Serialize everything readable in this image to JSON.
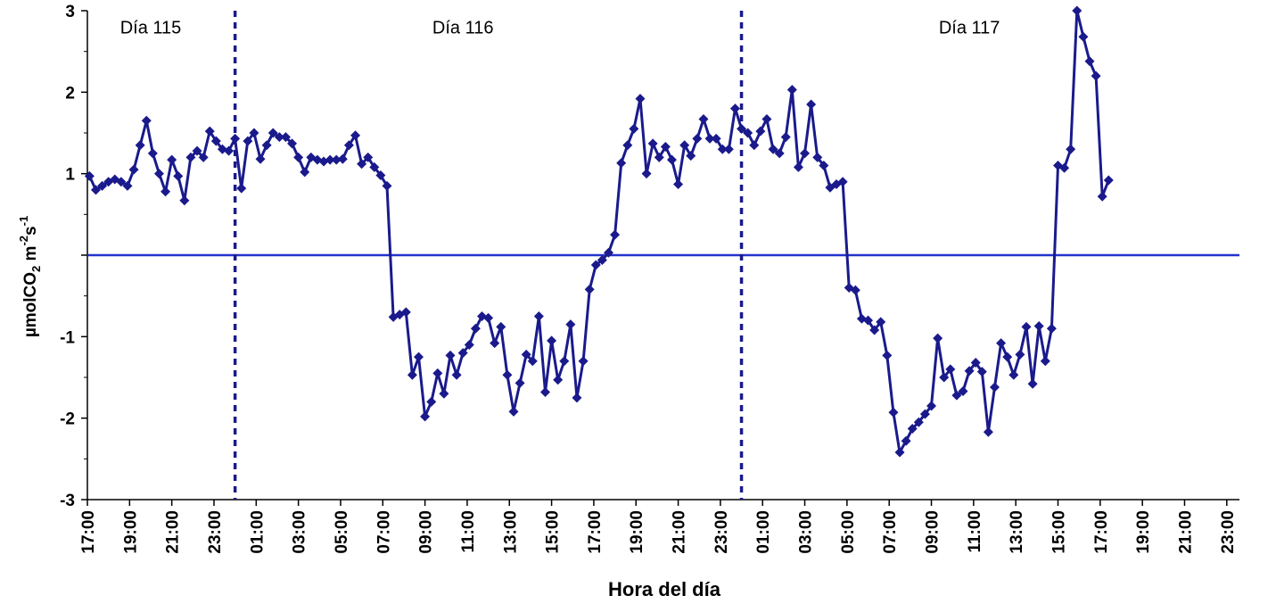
{
  "chart_data": {
    "type": "line",
    "title": "",
    "xlabel": "Hora del día",
    "ylabel": {
      "main": "µmolCO",
      "sub": "2",
      "unit": " m",
      "sup1": "-2",
      "unit2": "s",
      "sup2": "-1"
    },
    "xlim": [
      17,
      71.6
    ],
    "ylim": [
      -3,
      3
    ],
    "x_tick_labels": [
      "17:00",
      "19:00",
      "21:00",
      "23:00",
      "01:00",
      "03:00",
      "05:00",
      "07:00",
      "09:00",
      "11:00",
      "13:00",
      "15:00",
      "17:00",
      "19:00",
      "21:00",
      "23:00",
      "01:00",
      "03:00",
      "05:00",
      "07:00",
      "09:00",
      "11:00",
      "13:00",
      "15:00",
      "17:00",
      "19:00",
      "21:00",
      "23:00"
    ],
    "y_tick_labels": [
      "3",
      "2",
      "1",
      "",
      "-1",
      "-2",
      "-3"
    ],
    "y_tick_values": [
      3,
      2,
      1,
      0,
      -1,
      -2,
      -3
    ],
    "grid": false,
    "legend": "none",
    "zero_line": 0,
    "day_boundaries": [
      24,
      48
    ],
    "annotations": [
      {
        "text": "Día 115",
        "x": 20.0,
        "y": 2.8
      },
      {
        "text": "Día 116",
        "x": 34.8,
        "y": 2.8
      },
      {
        "text": "Día 117",
        "x": 58.8,
        "y": 2.8
      }
    ],
    "series": [
      {
        "color": "#1a1a8c",
        "marker": "diamond",
        "points": [
          [
            17.1,
            0.97
          ],
          [
            17.4,
            0.8
          ],
          [
            17.7,
            0.85
          ],
          [
            18.0,
            0.9
          ],
          [
            18.3,
            0.93
          ],
          [
            18.6,
            0.9
          ],
          [
            18.9,
            0.85
          ],
          [
            19.2,
            1.05
          ],
          [
            19.5,
            1.35
          ],
          [
            19.8,
            1.65
          ],
          [
            20.1,
            1.25
          ],
          [
            20.4,
            1.0
          ],
          [
            20.7,
            0.78
          ],
          [
            21.0,
            1.17
          ],
          [
            21.3,
            0.97
          ],
          [
            21.6,
            0.67
          ],
          [
            21.9,
            1.2
          ],
          [
            22.2,
            1.28
          ],
          [
            22.5,
            1.2
          ],
          [
            22.8,
            1.52
          ],
          [
            23.1,
            1.4
          ],
          [
            23.4,
            1.3
          ],
          [
            23.7,
            1.28
          ],
          [
            24.0,
            1.43
          ],
          [
            24.3,
            0.82
          ],
          [
            24.6,
            1.4
          ],
          [
            24.9,
            1.5
          ],
          [
            25.2,
            1.18
          ],
          [
            25.5,
            1.35
          ],
          [
            25.8,
            1.5
          ],
          [
            26.1,
            1.45
          ],
          [
            26.4,
            1.45
          ],
          [
            26.7,
            1.37
          ],
          [
            27.0,
            1.2
          ],
          [
            27.3,
            1.02
          ],
          [
            27.6,
            1.2
          ],
          [
            27.9,
            1.17
          ],
          [
            28.2,
            1.15
          ],
          [
            28.5,
            1.17
          ],
          [
            28.8,
            1.17
          ],
          [
            29.1,
            1.18
          ],
          [
            29.4,
            1.35
          ],
          [
            29.7,
            1.47
          ],
          [
            30.0,
            1.12
          ],
          [
            30.3,
            1.2
          ],
          [
            30.6,
            1.08
          ],
          [
            30.9,
            0.98
          ],
          [
            31.2,
            0.85
          ],
          [
            31.5,
            -0.76
          ],
          [
            31.8,
            -0.73
          ],
          [
            32.1,
            -0.7
          ],
          [
            32.4,
            -1.47
          ],
          [
            32.7,
            -1.25
          ],
          [
            33.0,
            -1.98
          ],
          [
            33.3,
            -1.8
          ],
          [
            33.6,
            -1.45
          ],
          [
            33.9,
            -1.7
          ],
          [
            34.2,
            -1.23
          ],
          [
            34.5,
            -1.47
          ],
          [
            34.8,
            -1.2
          ],
          [
            35.1,
            -1.1
          ],
          [
            35.4,
            -0.9
          ],
          [
            35.7,
            -0.75
          ],
          [
            36.0,
            -0.77
          ],
          [
            36.3,
            -1.08
          ],
          [
            36.6,
            -0.88
          ],
          [
            36.9,
            -1.47
          ],
          [
            37.2,
            -1.92
          ],
          [
            37.5,
            -1.57
          ],
          [
            37.8,
            -1.22
          ],
          [
            38.1,
            -1.3
          ],
          [
            38.4,
            -0.75
          ],
          [
            38.7,
            -1.68
          ],
          [
            39.0,
            -1.05
          ],
          [
            39.3,
            -1.53
          ],
          [
            39.6,
            -1.3
          ],
          [
            39.9,
            -0.85
          ],
          [
            40.2,
            -1.75
          ],
          [
            40.5,
            -1.3
          ],
          [
            40.8,
            -0.42
          ],
          [
            41.1,
            -0.12
          ],
          [
            41.4,
            -0.06
          ],
          [
            41.7,
            0.03
          ],
          [
            42.0,
            0.25
          ],
          [
            42.3,
            1.13
          ],
          [
            42.6,
            1.35
          ],
          [
            42.9,
            1.55
          ],
          [
            43.2,
            1.92
          ],
          [
            43.5,
            1.0
          ],
          [
            43.8,
            1.37
          ],
          [
            44.1,
            1.2
          ],
          [
            44.4,
            1.33
          ],
          [
            44.7,
            1.17
          ],
          [
            45.0,
            0.87
          ],
          [
            45.3,
            1.35
          ],
          [
            45.6,
            1.22
          ],
          [
            45.9,
            1.43
          ],
          [
            46.2,
            1.67
          ],
          [
            46.5,
            1.43
          ],
          [
            46.8,
            1.43
          ],
          [
            47.1,
            1.3
          ],
          [
            47.4,
            1.3
          ],
          [
            47.7,
            1.8
          ],
          [
            48.0,
            1.55
          ],
          [
            48.3,
            1.5
          ],
          [
            48.6,
            1.35
          ],
          [
            48.9,
            1.52
          ],
          [
            49.2,
            1.67
          ],
          [
            49.5,
            1.3
          ],
          [
            49.8,
            1.25
          ],
          [
            50.1,
            1.45
          ],
          [
            50.4,
            2.03
          ],
          [
            50.7,
            1.08
          ],
          [
            51.0,
            1.25
          ],
          [
            51.3,
            1.85
          ],
          [
            51.6,
            1.2
          ],
          [
            51.9,
            1.1
          ],
          [
            52.2,
            0.83
          ],
          [
            52.5,
            0.87
          ],
          [
            52.8,
            0.9
          ],
          [
            53.1,
            -0.4
          ],
          [
            53.4,
            -0.43
          ],
          [
            53.7,
            -0.78
          ],
          [
            54.0,
            -0.8
          ],
          [
            54.3,
            -0.92
          ],
          [
            54.6,
            -0.82
          ],
          [
            54.9,
            -1.23
          ],
          [
            55.2,
            -1.93
          ],
          [
            55.5,
            -2.42
          ],
          [
            55.8,
            -2.28
          ],
          [
            56.1,
            -2.13
          ],
          [
            56.4,
            -2.05
          ],
          [
            56.7,
            -1.95
          ],
          [
            57.0,
            -1.85
          ],
          [
            57.3,
            -1.02
          ],
          [
            57.6,
            -1.5
          ],
          [
            57.9,
            -1.4
          ],
          [
            58.2,
            -1.72
          ],
          [
            58.5,
            -1.67
          ],
          [
            58.8,
            -1.42
          ],
          [
            59.1,
            -1.32
          ],
          [
            59.4,
            -1.43
          ],
          [
            59.7,
            -2.17
          ],
          [
            60.0,
            -1.62
          ],
          [
            60.3,
            -1.08
          ],
          [
            60.6,
            -1.25
          ],
          [
            60.9,
            -1.47
          ],
          [
            61.2,
            -1.22
          ],
          [
            61.5,
            -0.88
          ],
          [
            61.8,
            -1.58
          ],
          [
            62.1,
            -0.87
          ],
          [
            62.4,
            -1.3
          ],
          [
            62.7,
            -0.9
          ],
          [
            63.0,
            1.1
          ],
          [
            63.3,
            1.07
          ],
          [
            63.6,
            1.3
          ],
          [
            63.9,
            3.0
          ],
          [
            64.2,
            2.68
          ],
          [
            64.5,
            2.38
          ],
          [
            64.8,
            2.2
          ],
          [
            65.1,
            0.72
          ],
          [
            65.4,
            0.92
          ]
        ]
      }
    ]
  }
}
